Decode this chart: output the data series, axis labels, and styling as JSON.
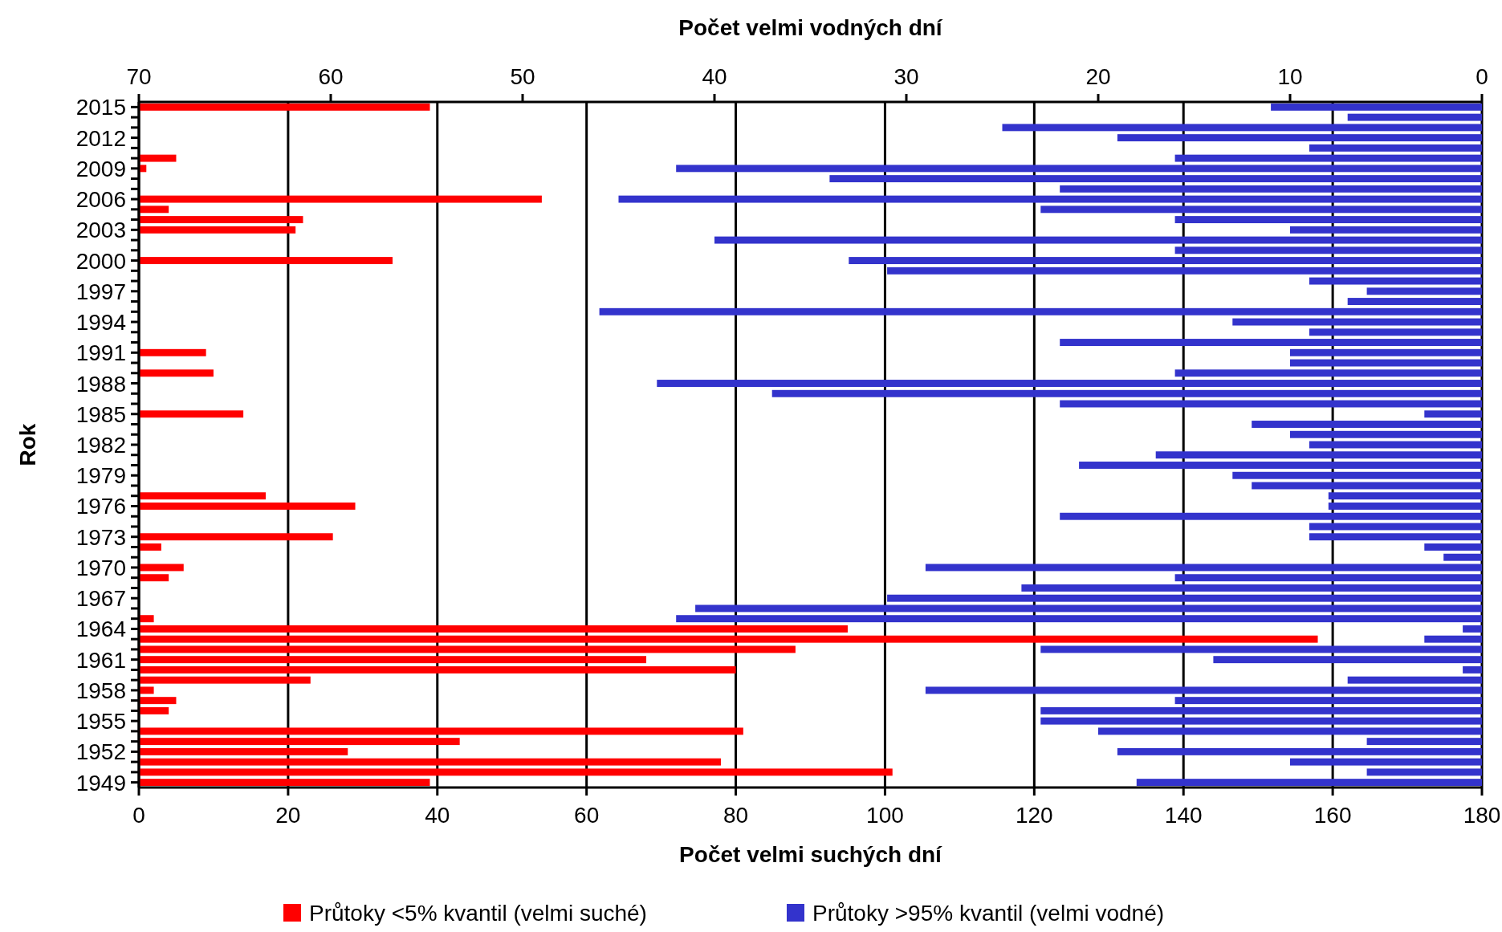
{
  "chart_data": {
    "type": "bar",
    "orientation": "horizontal",
    "xlabel": "Počet velmi suchých dní",
    "x2label": "Počet velmi vodných dní",
    "ylabel": "Rok",
    "categories": [
      "2015",
      null,
      null,
      "2012",
      null,
      null,
      "2009",
      null,
      null,
      "2006",
      null,
      null,
      "2003",
      null,
      null,
      "2000",
      null,
      null,
      "1997",
      null,
      null,
      "1994",
      null,
      null,
      "1991",
      null,
      null,
      "1988",
      null,
      null,
      "1985",
      null,
      null,
      "1982",
      null,
      null,
      "1979",
      null,
      null,
      "1976",
      null,
      null,
      "1973",
      null,
      null,
      "1970",
      null,
      null,
      "1967",
      null,
      null,
      "1964",
      null,
      null,
      "1961",
      null,
      null,
      "1958",
      null,
      null,
      "1955",
      null,
      null,
      "1952",
      null,
      null,
      "1949"
    ],
    "series": [
      {
        "name": "Průtoky <5% kvantil (velmi suché)",
        "color": "#ff0000",
        "values": [
          39,
          0,
          0,
          0,
          0,
          5,
          1,
          0,
          0,
          54,
          4,
          22,
          21,
          0,
          0,
          34,
          0,
          0,
          0,
          0,
          0,
          0,
          0,
          0,
          9,
          0,
          10,
          0,
          0,
          0,
          14,
          0,
          0,
          0,
          0,
          0,
          0,
          0,
          17,
          29,
          0,
          0,
          26,
          3,
          0,
          6,
          4,
          0,
          0,
          0,
          2,
          95,
          158,
          88,
          68,
          80,
          23,
          2,
          5,
          4,
          0,
          81,
          43,
          28,
          78,
          101,
          39
        ]
      },
      {
        "name": "Průtoky >95% kvantil (velmi vodné)",
        "color": "#3333cc",
        "axis": "x2",
        "values": [
          11,
          7,
          25,
          19,
          9,
          16,
          42,
          34,
          22,
          45,
          23,
          16,
          10,
          40,
          16,
          33,
          31,
          9,
          6,
          7,
          46,
          13,
          9,
          22,
          10,
          10,
          16,
          43,
          37,
          22,
          3,
          12,
          10,
          9,
          17,
          21,
          13,
          12,
          8,
          8,
          22,
          9,
          9,
          3,
          2,
          29,
          16,
          24,
          31,
          41,
          42,
          1,
          3,
          23,
          14,
          1,
          7,
          29,
          16,
          23,
          23,
          20,
          6,
          19,
          10,
          6,
          18
        ]
      }
    ],
    "xlim": [
      0,
      180
    ],
    "xticks": [
      0,
      20,
      40,
      60,
      80,
      100,
      120,
      140,
      160,
      180
    ],
    "x2lim": [
      70,
      0
    ],
    "x2ticks": [
      70,
      60,
      50,
      40,
      30,
      20,
      10,
      0
    ],
    "grid": "x",
    "legend": "bottom"
  }
}
